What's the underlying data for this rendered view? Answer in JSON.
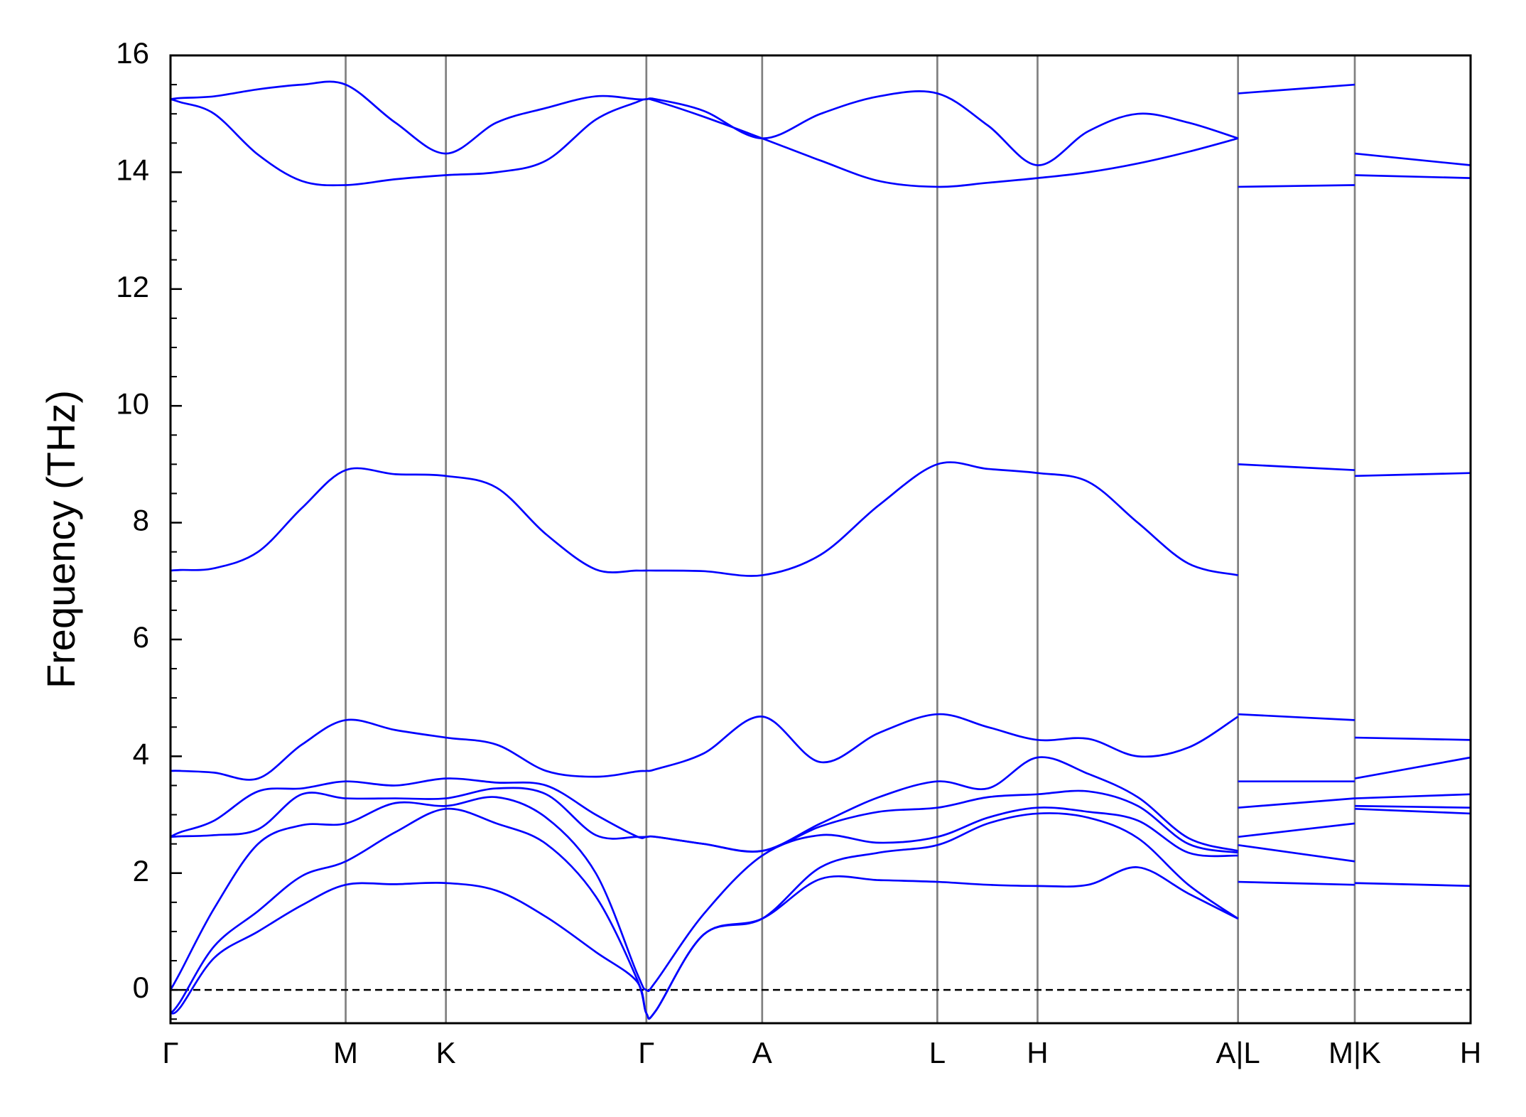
{
  "chart_data": {
    "type": "line",
    "ylabel": "Frequency (THz)",
    "color": "#0000ff",
    "x": [
      0,
      0.1,
      0.45,
      0.9,
      1.35,
      1.8,
      2.31,
      2.83,
      3.35,
      3.86,
      4.37,
      4.79,
      4.89,
      4.99,
      5.48,
      6.08,
      6.68,
      7.28,
      7.88,
      8.4,
      8.91,
      9.43,
      9.94,
      10.46,
      10.97,
      null,
      10.97,
      12.17,
      null,
      12.17,
      13.36
    ],
    "series": [
      {
        "values": [
          -0.4,
          -0.3,
          0.55,
          1.0,
          1.45,
          1.8,
          1.81,
          1.83,
          1.7,
          1.25,
          0.65,
          0.15,
          -0.4,
          -0.35,
          0.95,
          1.22,
          1.9,
          1.88,
          1.85,
          1.8,
          1.78,
          1.8,
          2.1,
          1.65,
          1.22,
          null,
          1.85,
          1.8,
          null,
          1.83,
          1.78
        ]
      },
      {
        "values": [
          -0.4,
          -0.2,
          0.75,
          1.35,
          1.95,
          2.2,
          2.7,
          3.1,
          2.85,
          2.5,
          1.6,
          0.2,
          -0.4,
          -0.35,
          0.95,
          1.22,
          2.1,
          2.35,
          2.48,
          2.85,
          3.02,
          2.95,
          2.6,
          1.8,
          1.22,
          null,
          2.48,
          2.2,
          null,
          3.1,
          3.02
        ]
      },
      {
        "values": [
          0,
          0.3,
          1.4,
          2.5,
          2.82,
          2.85,
          3.2,
          3.15,
          3.3,
          2.95,
          2.0,
          0.3,
          0,
          0.15,
          1.3,
          2.3,
          2.65,
          2.52,
          2.62,
          2.95,
          3.12,
          3.05,
          2.9,
          2.35,
          2.3,
          null,
          2.62,
          2.85,
          null,
          3.15,
          3.12
        ]
      },
      {
        "values": [
          2.62,
          2.63,
          2.65,
          2.75,
          3.35,
          3.28,
          3.28,
          3.28,
          3.45,
          3.35,
          2.65,
          2.62,
          2.62,
          2.62,
          2.5,
          2.38,
          2.8,
          3.05,
          3.12,
          3.3,
          3.35,
          3.4,
          3.15,
          2.5,
          2.35,
          null,
          3.12,
          3.28,
          null,
          3.28,
          3.35
        ]
      },
      {
        "values": [
          2.62,
          2.7,
          2.9,
          3.4,
          3.45,
          3.57,
          3.5,
          3.62,
          3.55,
          3.5,
          3.0,
          2.63,
          2.62,
          2.62,
          2.5,
          2.38,
          2.85,
          3.3,
          3.57,
          3.45,
          3.98,
          3.7,
          3.3,
          2.6,
          2.38,
          null,
          3.57,
          3.57,
          null,
          3.62,
          3.98
        ]
      },
      {
        "values": [
          3.75,
          3.75,
          3.72,
          3.62,
          4.2,
          4.62,
          4.45,
          4.32,
          4.2,
          3.75,
          3.65,
          3.74,
          3.75,
          3.78,
          4.05,
          4.68,
          3.9,
          4.4,
          4.72,
          4.5,
          4.28,
          4.3,
          4.0,
          4.15,
          4.68,
          null,
          4.72,
          4.62,
          null,
          4.32,
          4.28
        ]
      },
      {
        "values": [
          7.18,
          7.19,
          7.22,
          7.5,
          8.25,
          8.9,
          8.83,
          8.8,
          8.6,
          7.8,
          7.2,
          7.18,
          7.18,
          7.18,
          7.17,
          7.1,
          7.45,
          8.3,
          9.0,
          8.92,
          8.85,
          8.7,
          8.0,
          7.3,
          7.1,
          null,
          9.0,
          8.9,
          null,
          8.8,
          8.85
        ]
      },
      {
        "values": [
          15.25,
          15.2,
          15.0,
          14.3,
          13.85,
          13.78,
          13.88,
          13.95,
          14.0,
          14.2,
          14.9,
          15.2,
          15.25,
          15.22,
          14.95,
          14.58,
          14.2,
          13.85,
          13.75,
          13.82,
          13.9,
          14.0,
          14.15,
          14.35,
          14.58,
          null,
          13.75,
          13.78,
          null,
          13.95,
          13.9
        ]
      },
      {
        "values": [
          15.25,
          15.27,
          15.3,
          15.42,
          15.5,
          15.5,
          14.85,
          14.32,
          14.85,
          15.1,
          15.3,
          15.25,
          15.25,
          15.25,
          15.05,
          14.58,
          15.0,
          15.3,
          15.35,
          14.8,
          14.12,
          14.7,
          15.0,
          14.85,
          14.58,
          null,
          15.35,
          15.5,
          null,
          14.32,
          14.12
        ]
      }
    ],
    "xlim": [
      0,
      13.36
    ],
    "xticks": [
      {
        "value": 0,
        "label": "Γ"
      },
      {
        "value": 1.8,
        "label": "M"
      },
      {
        "value": 2.83,
        "label": "K"
      },
      {
        "value": 4.89,
        "label": "Γ"
      },
      {
        "value": 6.08,
        "label": "A"
      },
      {
        "value": 7.88,
        "label": "L"
      },
      {
        "value": 8.91,
        "label": "H"
      },
      {
        "value": 10.97,
        "label": "A|L"
      },
      {
        "value": 12.17,
        "label": "M|K"
      },
      {
        "value": 13.36,
        "label": "H"
      }
    ],
    "ylim": [
      -0.57,
      16
    ],
    "yticks": [
      0,
      2,
      4,
      6,
      8,
      10,
      12,
      14,
      16
    ],
    "yminorticks": [
      -0.5,
      0.5,
      1,
      1.5,
      2.5,
      3,
      3.5,
      4.5,
      5,
      5.5,
      6.5,
      7,
      7.5,
      8.5,
      9,
      9.5,
      10.5,
      11,
      11.5,
      12.5,
      13,
      13.5,
      14.5,
      15,
      15.5
    ],
    "hline": 0,
    "xgrid": true
  }
}
